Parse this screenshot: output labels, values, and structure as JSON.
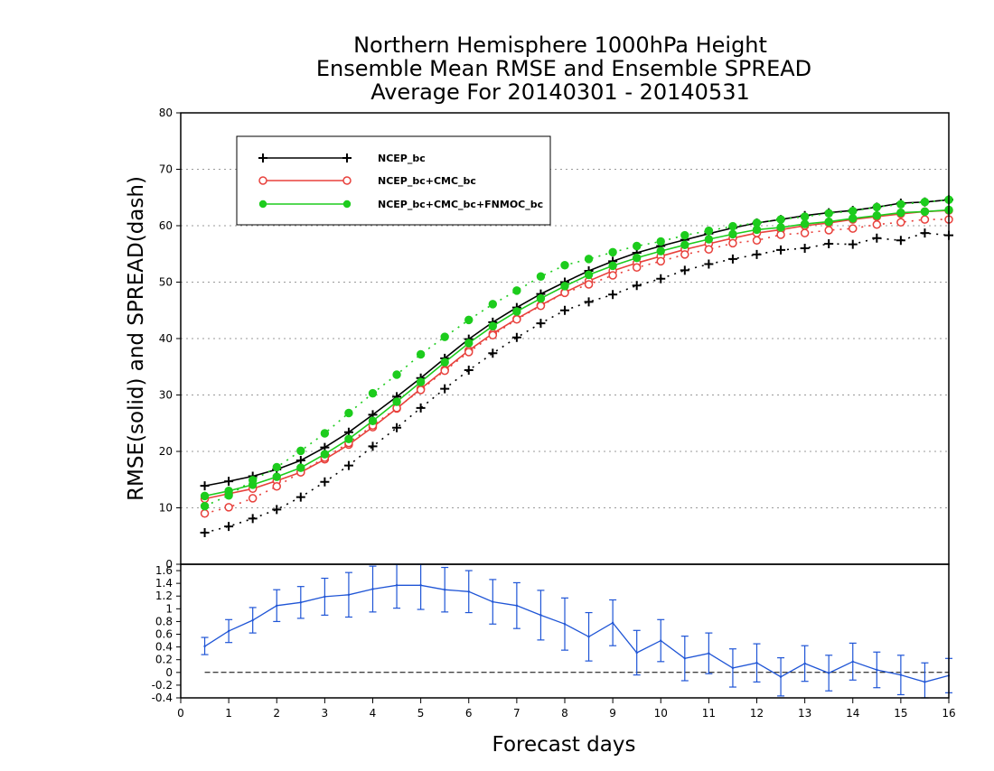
{
  "title": {
    "line1": "Northern Hemisphere 1000hPa Height",
    "line2": "Ensemble Mean RMSE and Ensemble SPREAD",
    "line3": "Average For 20140301 - 20140531"
  },
  "chart_data": [
    {
      "type": "line",
      "title": "Northern Hemisphere 1000hPa Height / Ensemble Mean RMSE and Ensemble SPREAD / Average For 20140301 - 20140531",
      "xlabel": "Forecast days",
      "ylabel": "RMSE(solid) and SPREAD(dash)",
      "xlim": [
        0,
        16
      ],
      "ylim": [
        0,
        80
      ],
      "yticks": [
        0,
        10,
        20,
        30,
        40,
        50,
        60,
        70,
        80
      ],
      "grid": true,
      "legend_position": "top-left",
      "x": [
        0.5,
        1,
        1.5,
        2,
        2.5,
        3,
        3.5,
        4,
        4.5,
        5,
        5.5,
        6,
        6.5,
        7,
        7.5,
        8,
        8.5,
        9,
        9.5,
        10,
        10.5,
        11,
        11.5,
        12,
        12.5,
        13,
        13.5,
        14,
        14.5,
        15,
        15.5,
        16
      ],
      "series": [
        {
          "name": "NCEP_bc",
          "color": "#000000",
          "marker": "plus",
          "rmse": [
            13.9,
            14.7,
            15.6,
            16.8,
            18.4,
            20.7,
            23.4,
            26.5,
            29.7,
            33.0,
            36.5,
            39.9,
            42.9,
            45.5,
            47.9,
            50.0,
            52.0,
            53.7,
            55.2,
            56.4,
            57.5,
            58.6,
            59.6,
            60.5,
            61.1,
            61.8,
            62.3,
            62.7,
            63.3,
            64.0,
            64.2,
            64.6
          ],
          "spread": [
            5.6,
            6.7,
            8.1,
            9.7,
            11.9,
            14.6,
            17.5,
            20.9,
            24.2,
            27.7,
            31.1,
            34.4,
            37.4,
            40.2,
            42.7,
            45.0,
            46.5,
            47.8,
            49.4,
            50.6,
            52.1,
            53.2,
            54.1,
            54.9,
            55.7,
            56.0,
            56.8,
            56.7,
            57.8,
            57.4,
            58.7,
            58.3
          ]
        },
        {
          "name": "NCEP_bc+CMC_bc",
          "color": "#e8413c",
          "marker": "open-circle",
          "rmse": [
            11.6,
            12.5,
            13.4,
            14.8,
            16.3,
            18.6,
            21.2,
            24.3,
            27.6,
            31.1,
            34.5,
            37.9,
            40.9,
            43.5,
            45.9,
            48.2,
            50.2,
            52.0,
            53.4,
            54.6,
            55.8,
            56.8,
            57.8,
            58.7,
            59.3,
            60.0,
            60.5,
            61.1,
            61.6,
            62.1,
            62.5,
            62.7
          ],
          "spread": [
            9.0,
            10.1,
            11.7,
            13.8,
            16.3,
            18.9,
            21.5,
            24.6,
            27.7,
            30.9,
            34.3,
            37.6,
            40.6,
            43.4,
            45.8,
            48.1,
            49.6,
            51.2,
            52.6,
            53.7,
            54.9,
            55.8,
            56.9,
            57.4,
            58.4,
            58.7,
            59.2,
            59.5,
            60.2,
            60.6,
            61.1,
            61.1
          ]
        },
        {
          "name": "NCEP_bc+CMC_bc+FNMOC_bc",
          "color": "#1dcc1d",
          "marker": "filled-circle",
          "rmse": [
            12.1,
            13.0,
            14.1,
            15.5,
            17.1,
            19.5,
            22.2,
            25.4,
            28.8,
            32.3,
            35.8,
            39.2,
            42.2,
            44.8,
            47.1,
            49.3,
            51.3,
            52.9,
            54.3,
            55.5,
            56.6,
            57.6,
            58.5,
            59.3,
            59.7,
            60.3,
            60.7,
            61.3,
            61.8,
            62.3,
            62.5,
            62.8
          ],
          "spread": [
            10.3,
            12.2,
            14.9,
            17.2,
            20.1,
            23.2,
            26.8,
            30.3,
            33.6,
            37.2,
            40.3,
            43.3,
            46.1,
            48.5,
            51.0,
            53.0,
            54.1,
            55.3,
            56.4,
            57.2,
            58.3,
            59.1,
            59.9,
            60.5,
            61.1,
            61.6,
            62.2,
            62.6,
            63.3,
            63.8,
            64.2,
            64.6
          ]
        }
      ]
    },
    {
      "type": "line",
      "description_label": "",
      "xlabel": "Forecast days",
      "ylabel": "",
      "xlim": [
        0,
        16
      ],
      "ylim": [
        -0.4,
        1.7
      ],
      "xticks": [
        0,
        1,
        2,
        3,
        4,
        5,
        6,
        7,
        8,
        9,
        10,
        11,
        12,
        13,
        14,
        15,
        16
      ],
      "yticks": [
        -0.4,
        -0.2,
        0,
        0.2,
        0.4,
        0.6,
        0.8,
        1,
        1.2,
        1.4,
        1.6
      ],
      "zero_line": true,
      "color": "#1f55d6",
      "x": [
        0.5,
        1,
        1.5,
        2,
        2.5,
        3,
        3.5,
        4,
        4.5,
        5,
        5.5,
        6,
        6.5,
        7,
        7.5,
        8,
        8.5,
        9,
        9.5,
        10,
        10.5,
        11,
        11.5,
        12,
        12.5,
        13,
        13.5,
        14,
        14.5,
        15,
        15.5,
        16
      ],
      "values": [
        0.41,
        0.65,
        0.82,
        1.05,
        1.1,
        1.19,
        1.22,
        1.31,
        1.37,
        1.37,
        1.3,
        1.27,
        1.11,
        1.05,
        0.9,
        0.76,
        0.56,
        0.78,
        0.31,
        0.5,
        0.22,
        0.3,
        0.07,
        0.15,
        -0.07,
        0.14,
        -0.01,
        0.17,
        0.04,
        -0.04,
        -0.15,
        -0.05
      ],
      "error_low": [
        0.28,
        0.47,
        0.62,
        0.8,
        0.85,
        0.9,
        0.87,
        0.95,
        1.01,
        0.99,
        0.95,
        0.94,
        0.76,
        0.69,
        0.51,
        0.35,
        0.18,
        0.42,
        -0.04,
        0.17,
        -0.13,
        -0.02,
        -0.23,
        -0.15,
        -0.37,
        -0.14,
        -0.29,
        -0.12,
        -0.24,
        -0.35,
        -0.42,
        -0.32
      ],
      "error_high": [
        0.55,
        0.83,
        1.02,
        1.3,
        1.35,
        1.48,
        1.57,
        1.67,
        1.73,
        1.75,
        1.65,
        1.6,
        1.46,
        1.41,
        1.29,
        1.17,
        0.94,
        1.14,
        0.66,
        0.83,
        0.57,
        0.62,
        0.37,
        0.45,
        0.23,
        0.42,
        0.27,
        0.46,
        0.32,
        0.27,
        0.15,
        0.22
      ]
    }
  ]
}
